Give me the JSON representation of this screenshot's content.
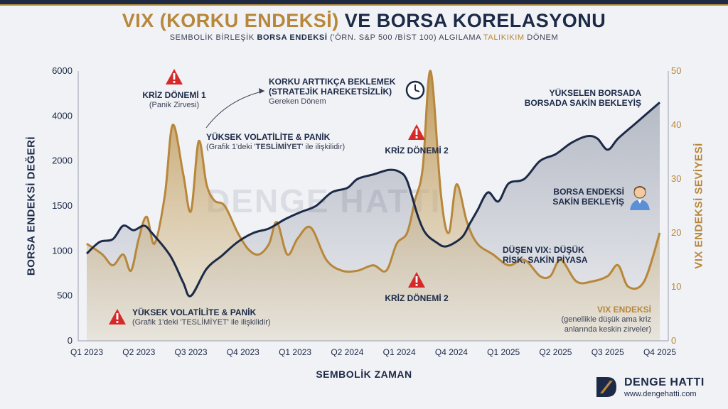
{
  "title": {
    "part1": "VIX (KORKU ENDEKSİ)",
    "part2": "VE BORSA KORELASYONU"
  },
  "subtitle": {
    "pre": "SEMBOLİK BİRLEŞİK ",
    "bold": "BORSA  ENDEKSİ",
    "post": " ('ÖRN. S&P 500 /BİST 100)  ALGILAMA ",
    "gold": "TALIKIKIM",
    "end": " DÖNEM"
  },
  "axes": {
    "left_title": "BORSA ENDEKSİ DEĞERİ",
    "right_title": "VIX ENDEKSİ SEVİYESİ",
    "x_title": "SEMBOLİK ZAMAN",
    "left_ticks": [
      "6000",
      "4000",
      "2000",
      "1500",
      "1000",
      "500",
      "0"
    ],
    "right_ticks": [
      "50",
      "40",
      "30",
      "20",
      "10",
      "0"
    ],
    "x_ticks": [
      "Q1 2023",
      "Q2 2023",
      "Q3 2023",
      "Q4 2023",
      "Q1 2023",
      "Q2 2024",
      "Q1 2024",
      "Q4 2024",
      "Q1 2025",
      "Q2 2025",
      "Q3 2025",
      "Q4 2025"
    ]
  },
  "annotations": {
    "kriz1_title": "KRİZ DÖNEMİ 1",
    "kriz1_sub": "(Panik Zirvesi)",
    "korku_title1": "KORKU ARTTIKÇA BEKLEMEK",
    "korku_title2": "(STRATEJİK HAREKETSİZLİK)",
    "korku_sub": "Gereken Dönem",
    "volat_title": "YÜKSEK VOLATİLİTE & PANİK",
    "volat_sub_pre": "(Grafik 1'deki '",
    "volat_sub_bold": "TESLİMİYET",
    "volat_sub_post": "' ile ilişkilidir)",
    "kriz2_title": "KRİZ DÖNEMİ 2",
    "kriz2_bottom": "KRİZ DÖNEMİ 2",
    "yukselen1": "YÜKSELEN BORSADA",
    "yukselen2": "BORSADA SAKİN BEKLEYİŞ",
    "sakin1": "BORSA ENDEKSİ",
    "sakin2": "SAKİN BEKLEYİŞ",
    "dusen1": "DÜŞEN VIX: DÜŞÜK",
    "dusen2": "RİSK, SAKİN PİYASA",
    "vix_title": "VIX ENDEKSİ",
    "vix_sub1": "(genellikle düşük ama kriz",
    "vix_sub2": "anlarında keskin zirveler)",
    "bottom_volat_title": "YÜKSEK VOLATİLİTE & PANİK",
    "bottom_volat_sub": "(Grafik 1'deki 'TESLİMİYET' ile ilişkilidir)"
  },
  "watermark": "DENGE HATTI",
  "logo": {
    "name": "DENGE HATTI",
    "url": "www.dengehatti.com"
  },
  "icons": {
    "warning": "warning-triangle-icon",
    "clock": "clock-icon",
    "person": "person-icon"
  },
  "colors": {
    "navy": "#1c2a48",
    "gold": "#b7873b",
    "warning_red": "#d62a2a"
  },
  "chart_data": {
    "type": "line",
    "title": "VIX (KORKU ENDEKSİ) VE BORSA KORELASYONU",
    "xlabel": "SEMBOLİK ZAMAN",
    "ylabel": "BORSA ENDEKSİ DEĞERİ",
    "y2label": "VIX ENDEKSİ SEVİYESİ",
    "categories": [
      "Q1 2023",
      "Q2 2023",
      "Q3 2023",
      "Q4 2023",
      "Q1 2023",
      "Q2 2024",
      "Q1 2024",
      "Q4 2024",
      "Q1 2025",
      "Q2 2025",
      "Q3 2025",
      "Q4 2025"
    ],
    "y_tick_labels": [
      "0",
      "500",
      "1000",
      "1500",
      "2000",
      "4000",
      "6000"
    ],
    "y2lim": [
      0,
      50
    ],
    "grid": false,
    "series": [
      {
        "name": "Borsa Endeksi",
        "axis": "left",
        "color": "#1c2a48",
        "x": [
          0,
          0.25,
          0.5,
          0.7,
          0.9,
          1.1,
          1.25,
          1.6,
          1.85,
          2.0,
          2.3,
          2.6,
          2.9,
          3.2,
          3.5,
          3.8,
          4.1,
          4.4,
          4.7,
          5.0,
          5.2,
          5.5,
          5.8,
          6.0,
          6.15,
          6.35,
          6.5,
          6.7,
          6.9,
          7.2,
          7.35,
          7.5,
          7.7,
          7.9,
          8.1,
          8.4,
          8.7,
          9.0,
          9.3,
          9.6,
          9.8,
          10.0,
          10.2,
          10.5,
          10.8,
          11.0
        ],
        "values": [
          970,
          1100,
          1130,
          1280,
          1230,
          1280,
          1200,
          950,
          650,
          500,
          800,
          950,
          1100,
          1200,
          1250,
          1350,
          1430,
          1500,
          1650,
          1700,
          1800,
          1850,
          1900,
          1880,
          1780,
          1400,
          1200,
          1100,
          1050,
          1150,
          1300,
          1450,
          1650,
          1550,
          1750,
          1800,
          2000,
          2300,
          2800,
          3100,
          3000,
          2500,
          3000,
          3600,
          4200,
          4600
        ]
      },
      {
        "name": "VIX ENDEKSİ",
        "axis": "right",
        "color": "#b7873b",
        "x": [
          0,
          0.3,
          0.5,
          0.7,
          0.85,
          1.0,
          1.15,
          1.3,
          1.5,
          1.65,
          1.85,
          2.0,
          2.15,
          2.3,
          2.45,
          2.65,
          2.9,
          3.1,
          3.3,
          3.5,
          3.65,
          3.85,
          4.05,
          4.3,
          4.6,
          4.9,
          5.2,
          5.5,
          5.75,
          5.95,
          6.15,
          6.3,
          6.45,
          6.6,
          6.8,
          6.95,
          7.1,
          7.3,
          7.5,
          7.8,
          8.1,
          8.4,
          8.7,
          8.9,
          9.1,
          9.4,
          9.7,
          10.0,
          10.2,
          10.4,
          10.7,
          11.0
        ],
        "values": [
          18,
          16,
          14,
          16,
          13,
          19,
          23,
          18,
          27,
          40,
          31,
          24,
          37,
          29,
          26,
          25,
          20,
          17,
          16,
          18,
          22,
          16,
          19,
          21,
          15,
          13,
          13,
          14,
          13,
          18,
          20,
          26,
          32,
          50,
          27,
          20,
          29,
          22,
          18,
          16,
          14,
          15,
          12,
          12,
          15,
          11,
          11,
          12,
          14,
          10,
          11,
          20
        ]
      }
    ]
  }
}
